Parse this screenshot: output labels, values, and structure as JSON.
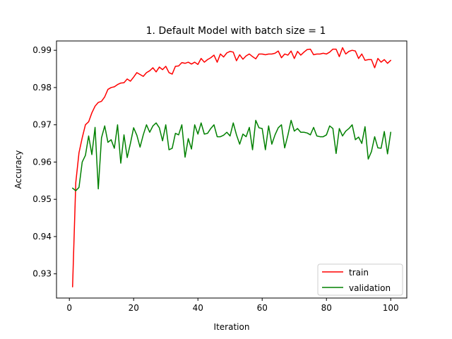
{
  "chart_data": {
    "type": "line",
    "title": "1. Default Model with batch size = 1",
    "xlabel": "Iteration",
    "ylabel": "Accuracy",
    "xlim": [
      -4.0,
      105.0
    ],
    "ylim": [
      0.9235,
      0.9925
    ],
    "xticks": [
      0,
      20,
      40,
      60,
      80,
      100
    ],
    "yticks": [
      0.93,
      0.94,
      0.95,
      0.96,
      0.97,
      0.98,
      0.99
    ],
    "ytick_labels": [
      "0.93",
      "0.94",
      "0.95",
      "0.96",
      "0.97",
      "0.98",
      "0.99"
    ],
    "grid": false,
    "legend_position": "lower-right",
    "x": [
      1,
      2,
      3,
      4,
      5,
      6,
      7,
      8,
      9,
      10,
      11,
      12,
      13,
      14,
      15,
      16,
      17,
      18,
      19,
      20,
      21,
      22,
      23,
      24,
      25,
      26,
      27,
      28,
      29,
      30,
      31,
      32,
      33,
      34,
      35,
      36,
      37,
      38,
      39,
      40,
      41,
      42,
      43,
      44,
      45,
      46,
      47,
      48,
      49,
      50,
      51,
      52,
      53,
      54,
      55,
      56,
      57,
      58,
      59,
      60,
      61,
      62,
      63,
      64,
      65,
      66,
      67,
      68,
      69,
      70,
      71,
      72,
      73,
      74,
      75,
      76,
      77,
      78,
      79,
      80,
      81,
      82,
      83,
      84,
      85,
      86,
      87,
      88,
      89,
      90,
      91,
      92,
      93,
      94,
      95,
      96,
      97,
      98,
      99,
      100
    ],
    "series": [
      {
        "name": "train",
        "color": "#ff0000",
        "values": [
          0.9265,
          0.9545,
          0.9625,
          0.9665,
          0.97,
          0.9708,
          0.9732,
          0.975,
          0.976,
          0.9763,
          0.9775,
          0.9795,
          0.98,
          0.9802,
          0.9808,
          0.9812,
          0.9813,
          0.9823,
          0.9817,
          0.9828,
          0.984,
          0.9835,
          0.983,
          0.984,
          0.9845,
          0.9853,
          0.9842,
          0.9855,
          0.9848,
          0.9857,
          0.984,
          0.9836,
          0.9857,
          0.9858,
          0.9867,
          0.9865,
          0.9868,
          0.9863,
          0.9868,
          0.9862,
          0.9878,
          0.9868,
          0.9875,
          0.988,
          0.9887,
          0.9868,
          0.989,
          0.9882,
          0.9893,
          0.9897,
          0.9895,
          0.9872,
          0.9888,
          0.9876,
          0.9885,
          0.989,
          0.9883,
          0.9877,
          0.989,
          0.989,
          0.9888,
          0.989,
          0.989,
          0.9892,
          0.9898,
          0.988,
          0.989,
          0.9887,
          0.9898,
          0.9878,
          0.9897,
          0.9887,
          0.9895,
          0.9902,
          0.9903,
          0.9888,
          0.989,
          0.989,
          0.9892,
          0.989,
          0.9895,
          0.9903,
          0.9903,
          0.9883,
          0.9907,
          0.989,
          0.9897,
          0.99,
          0.9898,
          0.9878,
          0.989,
          0.9873,
          0.9875,
          0.9875,
          0.9853,
          0.9878,
          0.9868,
          0.9875,
          0.9865,
          0.9873
        ]
      },
      {
        "name": "validation",
        "color": "#008000",
        "values": [
          0.953,
          0.9523,
          0.9532,
          0.96,
          0.9618,
          0.967,
          0.962,
          0.9693,
          0.9528,
          0.9665,
          0.9697,
          0.9653,
          0.966,
          0.9637,
          0.97,
          0.9597,
          0.9673,
          0.9612,
          0.965,
          0.9692,
          0.9672,
          0.964,
          0.9673,
          0.97,
          0.968,
          0.9697,
          0.9705,
          0.9692,
          0.9657,
          0.97,
          0.9633,
          0.9637,
          0.9677,
          0.9673,
          0.97,
          0.9613,
          0.9663,
          0.9635,
          0.97,
          0.9675,
          0.9705,
          0.9675,
          0.9677,
          0.969,
          0.97,
          0.9668,
          0.9668,
          0.9672,
          0.968,
          0.967,
          0.9705,
          0.9673,
          0.9648,
          0.9675,
          0.9668,
          0.9693,
          0.9633,
          0.9712,
          0.9692,
          0.969,
          0.9633,
          0.9697,
          0.9648,
          0.9673,
          0.9692,
          0.97,
          0.9638,
          0.9672,
          0.9712,
          0.9683,
          0.969,
          0.968,
          0.968,
          0.9678,
          0.9673,
          0.9693,
          0.967,
          0.9668,
          0.9668,
          0.9673,
          0.9697,
          0.969,
          0.9623,
          0.969,
          0.967,
          0.9683,
          0.969,
          0.97,
          0.966,
          0.9667,
          0.965,
          0.9695,
          0.9608,
          0.9628,
          0.9668,
          0.9638,
          0.9637,
          0.9682,
          0.9622,
          0.968
        ]
      }
    ]
  }
}
